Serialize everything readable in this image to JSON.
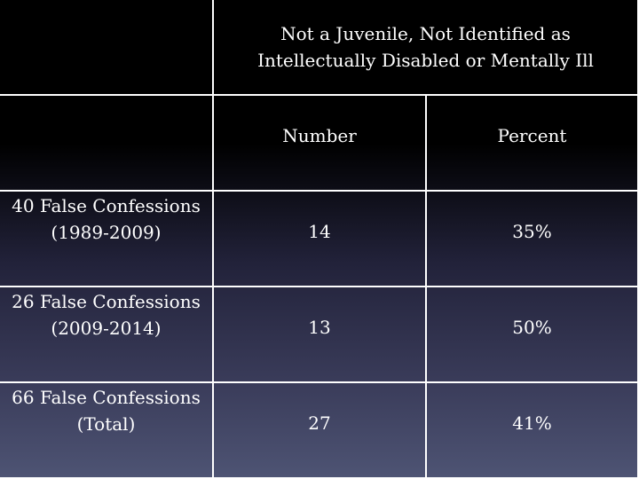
{
  "header": {
    "group_title": "Not a Juvenile, Not Identified as Intellectually Disabled or Mentally Ill",
    "col_number": "Number",
    "col_percent": "Percent"
  },
  "rows": [
    {
      "label_line1": "40 False Confessions",
      "label_line2": "(1989-2009)",
      "number": "14",
      "percent": "35%"
    },
    {
      "label_line1": "26 False Confessions",
      "label_line2": "(2009-2014)",
      "number": "13",
      "percent": "50%"
    },
    {
      "label_line1": "66 False Confessions",
      "label_line2": "(Total)",
      "number": "27",
      "percent": "41%"
    }
  ]
}
